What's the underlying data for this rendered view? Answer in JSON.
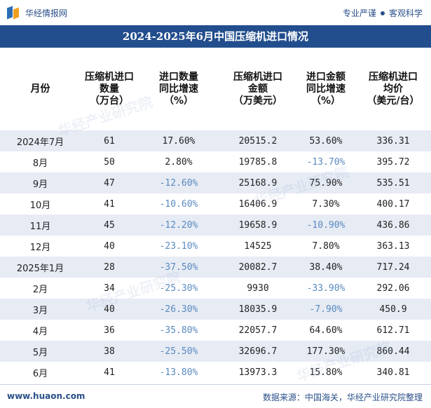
{
  "header": {
    "brand": "华经情报网",
    "slogan_left": "专业严谨",
    "slogan_right": "客观科学"
  },
  "title": "2024-2025年6月中国压缩机进口情况",
  "columns": [
    "月份",
    "压缩机进口\n数量\n（万台）",
    "进口数量\n同比增速\n（%）",
    "压缩机进口\n金额\n（万美元）",
    "进口金额\n同比增速\n（%）",
    "压缩机进口\n均价\n（美元/台）"
  ],
  "rows": [
    {
      "month": "2024年7月",
      "qty": "61",
      "qty_yoy": "17.60%",
      "amount": "20515.2",
      "amount_yoy": "53.60%",
      "price": "336.31"
    },
    {
      "month": "8月",
      "qty": "50",
      "qty_yoy": "2.80%",
      "amount": "19785.8",
      "amount_yoy": "-13.70%",
      "price": "395.72"
    },
    {
      "month": "9月",
      "qty": "47",
      "qty_yoy": "-12.60%",
      "amount": "25168.9",
      "amount_yoy": "75.90%",
      "price": "535.51"
    },
    {
      "month": "10月",
      "qty": "41",
      "qty_yoy": "-10.60%",
      "amount": "16406.9",
      "amount_yoy": "7.30%",
      "price": "400.17"
    },
    {
      "month": "11月",
      "qty": "45",
      "qty_yoy": "-12.20%",
      "amount": "19658.9",
      "amount_yoy": "-10.90%",
      "price": "436.86"
    },
    {
      "month": "12月",
      "qty": "40",
      "qty_yoy": "-23.10%",
      "amount": "14525",
      "amount_yoy": "7.80%",
      "price": "363.13"
    },
    {
      "month": "2025年1月",
      "qty": "28",
      "qty_yoy": "-37.50%",
      "amount": "20082.7",
      "amount_yoy": "38.40%",
      "price": "717.24"
    },
    {
      "month": "2月",
      "qty": "34",
      "qty_yoy": "-25.30%",
      "amount": "9930",
      "amount_yoy": "-33.90%",
      "price": "292.06"
    },
    {
      "month": "3月",
      "qty": "40",
      "qty_yoy": "-26.30%",
      "amount": "18035.9",
      "amount_yoy": "-7.90%",
      "price": "450.9"
    },
    {
      "month": "4月",
      "qty": "36",
      "qty_yoy": "-35.80%",
      "amount": "22057.7",
      "amount_yoy": "64.60%",
      "price": "612.71"
    },
    {
      "month": "5月",
      "qty": "38",
      "qty_yoy": "-25.50%",
      "amount": "32696.7",
      "amount_yoy": "177.30%",
      "price": "860.44"
    },
    {
      "month": "6月",
      "qty": "41",
      "qty_yoy": "-13.80%",
      "amount": "13973.3",
      "amount_yoy": "15.80%",
      "price": "340.81"
    }
  ],
  "watermark": "华经产业研究院",
  "footer": {
    "url": "www.huaon.com",
    "source": "数据来源：中国海关，华经产业研究院整理"
  },
  "colors": {
    "title_bg": "#234e8d",
    "row_alt": "#e6ebf4",
    "negative": "#5a8ac0"
  }
}
